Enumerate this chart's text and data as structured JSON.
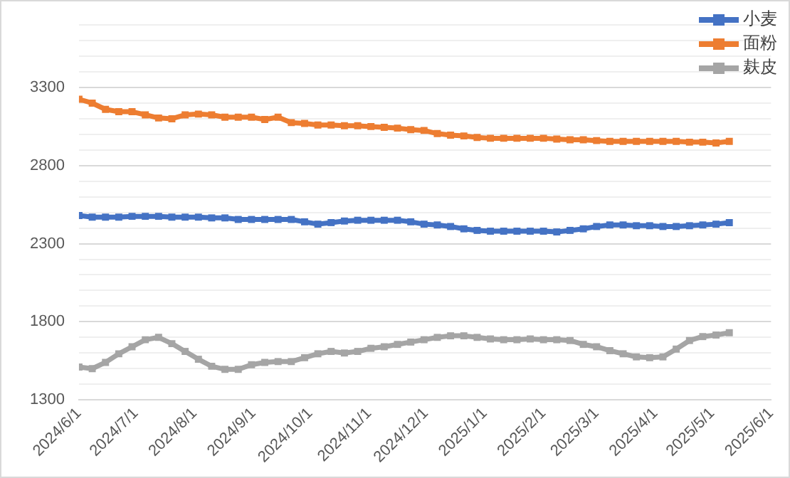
{
  "chart_data": {
    "type": "line",
    "x": [
      "2024-06-01",
      "2024-06-08",
      "2024-06-15",
      "2024-06-22",
      "2024-06-29",
      "2024-07-06",
      "2024-07-13",
      "2024-07-20",
      "2024-07-27",
      "2024-08-03",
      "2024-08-10",
      "2024-08-17",
      "2024-08-24",
      "2024-08-31",
      "2024-09-07",
      "2024-09-14",
      "2024-09-21",
      "2024-09-28",
      "2024-10-05",
      "2024-10-12",
      "2024-10-19",
      "2024-10-26",
      "2024-11-02",
      "2024-11-09",
      "2024-11-16",
      "2024-11-23",
      "2024-11-30",
      "2024-12-07",
      "2024-12-14",
      "2024-12-21",
      "2024-12-28",
      "2025-01-04",
      "2025-01-11",
      "2025-01-18",
      "2025-01-25",
      "2025-02-01",
      "2025-02-08",
      "2025-02-15",
      "2025-02-22",
      "2025-03-01",
      "2025-03-08",
      "2025-03-15",
      "2025-03-22",
      "2025-03-29",
      "2025-04-05",
      "2025-04-12",
      "2025-04-19",
      "2025-04-26",
      "2025-05-03",
      "2025-05-10"
    ],
    "series": [
      {
        "name": "小麦",
        "color": "#4472c4",
        "values": [
          2480,
          2470,
          2470,
          2470,
          2475,
          2475,
          2475,
          2470,
          2470,
          2470,
          2465,
          2465,
          2455,
          2455,
          2455,
          2455,
          2455,
          2440,
          2425,
          2435,
          2445,
          2450,
          2450,
          2450,
          2450,
          2440,
          2425,
          2420,
          2410,
          2395,
          2385,
          2380,
          2380,
          2380,
          2380,
          2380,
          2375,
          2385,
          2395,
          2410,
          2420,
          2420,
          2415,
          2415,
          2410,
          2410,
          2415,
          2420,
          2425,
          2435
        ]
      },
      {
        "name": "面粉",
        "color": "#ed7d31",
        "values": [
          3225,
          3200,
          3160,
          3145,
          3145,
          3125,
          3105,
          3100,
          3125,
          3130,
          3125,
          3110,
          3110,
          3110,
          3095,
          3110,
          3075,
          3070,
          3060,
          3060,
          3055,
          3055,
          3050,
          3045,
          3040,
          3030,
          3025,
          3005,
          2995,
          2990,
          2980,
          2975,
          2975,
          2975,
          2975,
          2975,
          2970,
          2965,
          2965,
          2960,
          2955,
          2955,
          2955,
          2955,
          2955,
          2955,
          2950,
          2950,
          2945,
          2955
        ]
      },
      {
        "name": "麸皮",
        "color": "#a5a5a5",
        "values": [
          1510,
          1500,
          1540,
          1595,
          1640,
          1685,
          1700,
          1660,
          1610,
          1560,
          1515,
          1495,
          1495,
          1525,
          1540,
          1545,
          1545,
          1570,
          1595,
          1610,
          1600,
          1610,
          1630,
          1640,
          1655,
          1670,
          1685,
          1700,
          1710,
          1710,
          1700,
          1690,
          1685,
          1685,
          1690,
          1685,
          1685,
          1680,
          1655,
          1640,
          1615,
          1595,
          1575,
          1570,
          1575,
          1625,
          1680,
          1705,
          1715,
          1730
        ]
      }
    ],
    "xlim": [
      "2024-06-01",
      "2025-06-01"
    ],
    "xticks": [
      {
        "value": "2024-06-01",
        "label": "2024/6/1"
      },
      {
        "value": "2024-07-01",
        "label": "2024/7/1"
      },
      {
        "value": "2024-08-01",
        "label": "2024/8/1"
      },
      {
        "value": "2024-09-01",
        "label": "2024/9/1"
      },
      {
        "value": "2024-10-01",
        "label": "2024/10/1"
      },
      {
        "value": "2024-11-01",
        "label": "2024/11/1"
      },
      {
        "value": "2024-12-01",
        "label": "2024/12/1"
      },
      {
        "value": "2025-01-01",
        "label": "2025/1/1"
      },
      {
        "value": "2025-02-01",
        "label": "2025/2/1"
      },
      {
        "value": "2025-03-01",
        "label": "2025/3/1"
      },
      {
        "value": "2025-04-01",
        "label": "2025/4/1"
      },
      {
        "value": "2025-05-01",
        "label": "2025/5/1"
      },
      {
        "value": "2025-06-01",
        "label": "2025/6/1"
      }
    ],
    "ylim": [
      1300,
      3700
    ],
    "yticks": [
      1300,
      {
        "value": 1400,
        "label": null
      },
      {
        "value": 1500,
        "label": null
      },
      {
        "value": 1600,
        "label": null
      },
      {
        "value": 1700,
        "label": null
      },
      1800,
      {
        "value": 1900,
        "label": null
      },
      {
        "value": 2000,
        "label": null
      },
      {
        "value": 2100,
        "label": null
      },
      {
        "value": 2200,
        "label": null
      },
      2300,
      {
        "value": 2400,
        "label": null
      },
      {
        "value": 2500,
        "label": null
      },
      {
        "value": 2600,
        "label": null
      },
      {
        "value": 2700,
        "label": null
      },
      2800,
      {
        "value": 2900,
        "label": null
      },
      {
        "value": 3000,
        "label": null
      },
      {
        "value": 3100,
        "label": null
      },
      {
        "value": 3200,
        "label": null
      },
      3300,
      {
        "value": 3400,
        "label": null
      },
      {
        "value": 3500,
        "label": null
      },
      {
        "value": 3600,
        "label": null
      },
      {
        "value": 3700,
        "label": null
      }
    ],
    "grid": "y",
    "legend": "top right",
    "marker": "square",
    "line_style": "solid"
  }
}
